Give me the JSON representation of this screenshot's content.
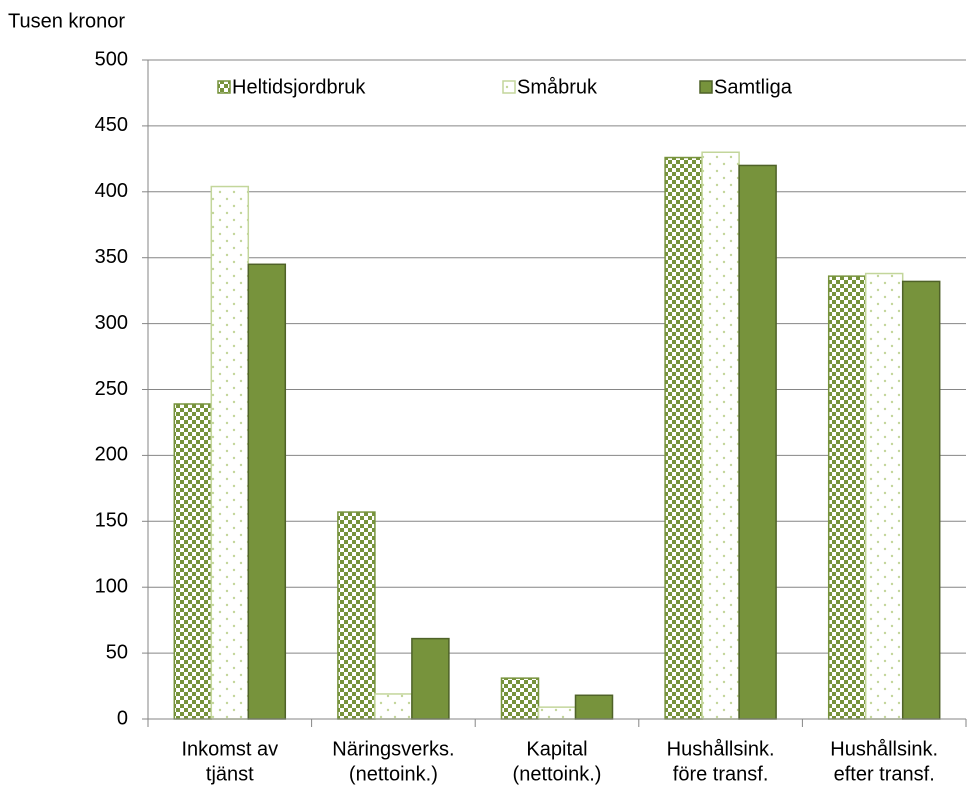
{
  "chart_data": {
    "type": "bar",
    "y_axis_label": "Tusen kronor",
    "categories": [
      [
        "Inkomst av",
        "tjänst"
      ],
      [
        "Näringsverks.",
        "(nettoink.)"
      ],
      [
        "Kapital",
        "(nettoink.)"
      ],
      [
        "Hushållsink.",
        "före transf."
      ],
      [
        "Hushållsink.",
        "efter transf."
      ]
    ],
    "series": [
      {
        "name": "Heltidsjordbruk",
        "color": "#77933c",
        "fill_style": "checker",
        "values": [
          239,
          157,
          31,
          426,
          336
        ]
      },
      {
        "name": "Småbruk",
        "color": "#c3d69b",
        "fill_style": "dots",
        "values": [
          404,
          19,
          9,
          430,
          338
        ]
      },
      {
        "name": "Samtliga",
        "color": "#77933c",
        "fill_style": "solid",
        "values": [
          345,
          61,
          18,
          420,
          332
        ]
      }
    ],
    "ylim": [
      0,
      500
    ],
    "yticks": [
      0,
      50,
      100,
      150,
      200,
      250,
      300,
      350,
      400,
      450,
      500
    ],
    "grid": true,
    "legend": "top"
  }
}
